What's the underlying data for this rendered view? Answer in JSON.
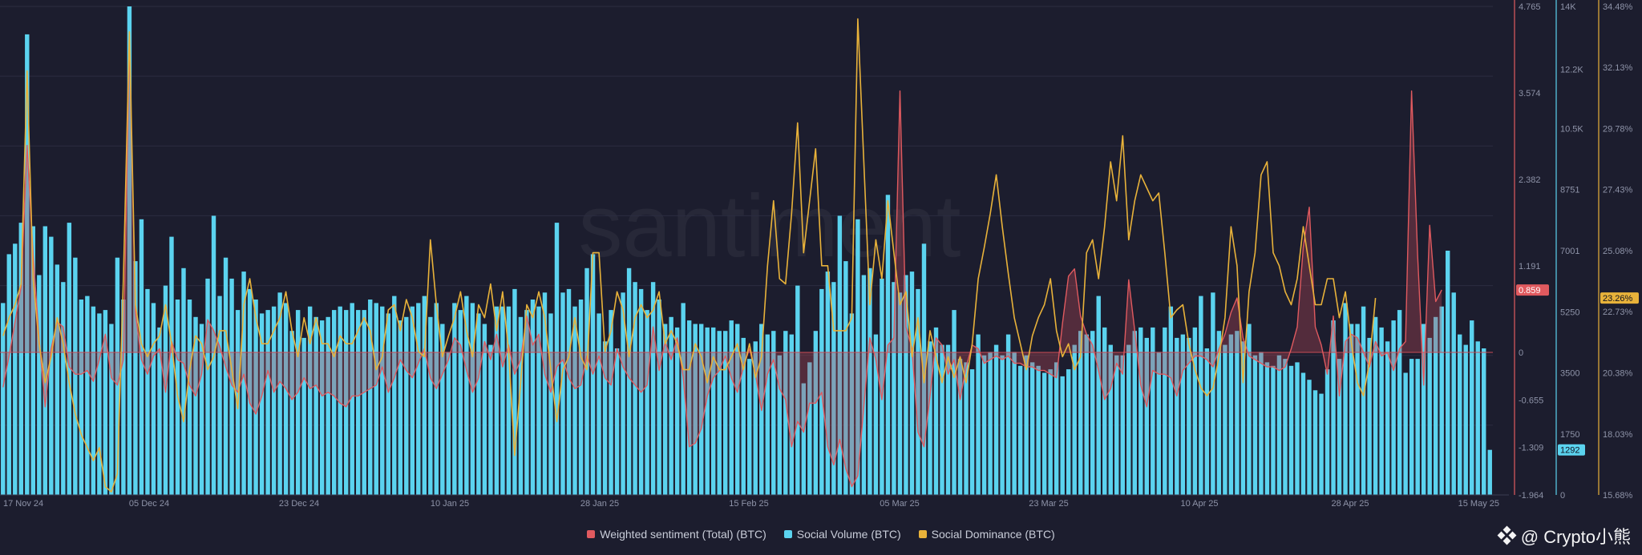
{
  "chart_data": {
    "type": "line",
    "watermark_text": "santiment",
    "x_ticks": [
      "17 Nov 24",
      "05 Dec 24",
      "23 Dec 24",
      "10 Jan 25",
      "28 Jan 25",
      "15 Feb 25",
      "05 Mar 25",
      "23 Mar 25",
      "10 Apr 25",
      "28 Apr 25",
      "15 May 25"
    ],
    "axes": {
      "sentiment": {
        "ticks": [
          "4.765",
          "3.574",
          "2.382",
          "1.191",
          "0",
          "-0.655",
          "-1.309",
          "-1.964"
        ],
        "range": [
          -1.964,
          4.765
        ],
        "color": "#e05a5f",
        "current_label": "0.859"
      },
      "volume": {
        "ticks": [
          "14K",
          "12.2K",
          "10.5K",
          "8751",
          "7001",
          "5250",
          "3500",
          "1750",
          "0"
        ],
        "range": [
          0,
          14000
        ],
        "color": "#5bd3ef",
        "current_label": "1292"
      },
      "dominance": {
        "ticks": [
          "34.48%",
          "32.13%",
          "29.78%",
          "27.43%",
          "25.08%",
          "22.73%",
          "20.38%",
          "18.03%",
          "15.68%"
        ],
        "range": [
          15.68,
          34.48
        ],
        "color": "#e8b23a",
        "current_label": "23.26%"
      }
    },
    "series": [
      {
        "name": "Weighted sentiment (Total) (BTC)",
        "color": "#e05a5f",
        "axis": "sentiment",
        "values": [
          -0.48,
          -0.05,
          0.42,
          0.9,
          2.85,
          1.35,
          0.18,
          -0.75,
          0.05,
          0.42,
          0.35,
          -0.2,
          -0.3,
          -0.3,
          -0.25,
          -0.4,
          -0.1,
          0.25,
          -0.35,
          -0.45,
          -0.1,
          4.3,
          0.55,
          -0.1,
          -0.3,
          -0.05,
          0.05,
          -0.55,
          0.15,
          -0.1,
          -0.15,
          -0.45,
          -0.6,
          -0.3,
          0.45,
          0.3,
          0.08,
          -0.2,
          -0.45,
          -0.55,
          -0.3,
          -0.7,
          -0.85,
          -0.6,
          -0.25,
          -0.55,
          -0.4,
          -0.5,
          -0.65,
          -0.55,
          -0.35,
          -0.5,
          -0.45,
          -0.6,
          -0.55,
          -0.6,
          -0.7,
          -0.75,
          -0.6,
          -0.6,
          -0.55,
          -0.5,
          -0.45,
          -0.2,
          -0.55,
          -0.35,
          -0.1,
          -0.25,
          -0.35,
          -0.15,
          0.05,
          -0.35,
          -0.5,
          -0.3,
          -0.1,
          0.2,
          0.1,
          -0.25,
          -0.55,
          -0.35,
          0.15,
          -0.1,
          0.25,
          -0.2,
          0.1,
          -0.3,
          -0.1,
          0.5,
          0.1,
          0.25,
          -0.3,
          -0.55,
          -0.2,
          -0.1,
          -0.35,
          -0.5,
          -0.45,
          -0.05,
          -0.3,
          -0.05,
          -0.35,
          -0.45,
          0.05,
          -0.2,
          -0.35,
          -0.45,
          -0.55,
          -0.45,
          0.35,
          -0.25,
          0.15,
          -0.1,
          0.2,
          -0.35,
          -1.3,
          -1.25,
          -1.05,
          -0.6,
          -0.35,
          -0.25,
          -0.05,
          -0.35,
          -0.55,
          -0.2,
          0.05,
          -0.3,
          -0.8,
          -0.3,
          -0.1,
          -0.5,
          -0.65,
          -1.3,
          -0.95,
          -1.1,
          -0.7,
          -0.7,
          -0.55,
          -1.3,
          -1.55,
          -1.2,
          -1.6,
          -1.85,
          -1.7,
          -0.75,
          0.2,
          -0.1,
          -0.65,
          0.1,
          0.2,
          3.6,
          0.35,
          0.05,
          -1.1,
          -1.3,
          -0.6,
          0.2,
          0.1,
          -0.3,
          -0.1,
          -0.65,
          -0.2,
          0.1,
          0.05,
          -0.15,
          -0.1,
          -0.05,
          -0.1,
          -0.05,
          -0.15,
          -0.15,
          -0.2,
          -0.2,
          -0.25,
          -0.25,
          -0.3,
          -0.35,
          0.4,
          1.05,
          1.15,
          0.5,
          0.25,
          0.1,
          -0.25,
          -0.65,
          -0.5,
          -0.15,
          -0.3,
          1.0,
          0.3,
          -0.45,
          -0.75,
          -0.25,
          -0.3,
          -0.3,
          -0.35,
          -0.6,
          -0.25,
          -0.15,
          -0.05,
          -0.05,
          -0.1,
          -0.2,
          0.05,
          0.25,
          0.55,
          0.75,
          0.2,
          -0.05,
          -0.1,
          -0.15,
          -0.2,
          -0.2,
          -0.25,
          -0.2,
          0.05,
          0.35,
          1.45,
          2.0,
          0.35,
          0.1,
          -0.3,
          0.5,
          -0.6,
          0.15,
          0.25,
          0.2,
          0.0,
          -0.2,
          0.15,
          -0.05,
          0.0,
          -0.25,
          0.05,
          0.15,
          3.6,
          1.35,
          -0.45,
          1.75,
          0.7,
          0.86
        ]
      },
      {
        "name": "Social Volume (BTC)",
        "color": "#5bd3ef",
        "axis": "volume",
        "values": [
          5500,
          6900,
          7200,
          7800,
          13200,
          7700,
          6300,
          7700,
          7400,
          6600,
          6100,
          7800,
          6800,
          5600,
          5700,
          5400,
          5200,
          5300,
          4900,
          6800,
          5600,
          14000,
          6700,
          7900,
          5900,
          5500,
          4800,
          6000,
          7400,
          5600,
          6500,
          5600,
          5100,
          4900,
          6200,
          8000,
          5700,
          6800,
          6200,
          5300,
          6400,
          5900,
          5600,
          5200,
          5300,
          5400,
          5800,
          5500,
          4700,
          5300,
          4500,
          5400,
          5100,
          5000,
          5100,
          5300,
          5400,
          5300,
          5500,
          5300,
          5300,
          5600,
          5500,
          5400,
          5200,
          5700,
          5000,
          5100,
          5400,
          5500,
          5700,
          5100,
          5500,
          4900,
          4100,
          5500,
          5300,
          5700,
          5500,
          5200,
          4900,
          4300,
          5400,
          5400,
          5400,
          5900,
          5100,
          5300,
          5600,
          5400,
          5800,
          5200,
          7800,
          5800,
          5900,
          5400,
          5600,
          6500,
          6900,
          5200,
          4400,
          5300,
          4200,
          5800,
          6500,
          6100,
          5900,
          5300,
          6100,
          5600,
          4900,
          5100,
          4800,
          5500,
          5000,
          4900,
          4900,
          4800,
          4800,
          4700,
          4700,
          5000,
          4900,
          4500,
          3900,
          4400,
          4900,
          4600,
          4700,
          4000,
          4700,
          4600,
          6000,
          3200,
          3800,
          4700,
          5900,
          6400,
          6100,
          8000,
          6700,
          5200,
          7900,
          6300,
          6500,
          4600,
          6200,
          8600,
          6100,
          5800,
          6300,
          6400,
          5900,
          7200,
          4400,
          4800,
          4300,
          4300,
          5300,
          3900,
          3800,
          3600,
          4600,
          4000,
          4100,
          4300,
          4000,
          4600,
          4100,
          3700,
          4000,
          3800,
          3700,
          3500,
          3600,
          3800,
          3400,
          3600,
          4300,
          4700,
          4600,
          4700,
          5700,
          4800,
          4300,
          4000,
          4000,
          4300,
          4700,
          4800,
          4500,
          4800,
          4100,
          4800,
          5400,
          4500,
          4600,
          4500,
          4800,
          5700,
          4200,
          5800,
          4700,
          4300,
          4600,
          4700,
          4400,
          4900,
          4000,
          4100,
          3800,
          3700,
          4000,
          3900,
          3700,
          3800,
          3500,
          3300,
          3000,
          2900,
          3600,
          5000,
          3900,
          5500,
          4900,
          4900,
          5400,
          4500,
          5100,
          4800,
          4400,
          5000,
          5300,
          3500,
          3900,
          3900,
          4900,
          4500,
          5100,
          5400,
          7000,
          5800,
          4600,
          4300,
          5000,
          4400,
          4200,
          1292
        ]
      },
      {
        "name": "Social Dominance (BTC)",
        "color": "#e8b23a",
        "axis": "dominance",
        "values": [
          21.8,
          22.5,
          23.0,
          23.8,
          32.0,
          24.0,
          21.5,
          20.0,
          21.0,
          22.5,
          21.5,
          20.0,
          18.8,
          18.0,
          17.5,
          17.0,
          17.5,
          16.0,
          15.8,
          16.5,
          24.0,
          33.5,
          23.0,
          21.5,
          21.0,
          21.5,
          21.8,
          23.0,
          21.5,
          19.5,
          18.5,
          20.5,
          21.8,
          21.5,
          20.5,
          21.0,
          22.0,
          22.0,
          20.5,
          19.0,
          23.0,
          24.0,
          22.5,
          21.5,
          21.5,
          22.0,
          22.5,
          23.5,
          22.0,
          21.0,
          22.5,
          21.5,
          22.5,
          21.5,
          21.5,
          21.0,
          21.8,
          21.5,
          21.5,
          22.0,
          22.5,
          22.0,
          20.5,
          21.0,
          22.8,
          23.0,
          22.0,
          23.2,
          22.5,
          21.2,
          21.0,
          25.5,
          23.0,
          21.0,
          21.8,
          22.5,
          23.5,
          22.0,
          21.0,
          23.0,
          22.5,
          23.8,
          22.0,
          23.5,
          21.2,
          17.2,
          20.0,
          23.0,
          22.5,
          23.5,
          22.5,
          20.5,
          18.5,
          20.5,
          21.0,
          22.5,
          21.0,
          20.5,
          25.0,
          25.0,
          21.2,
          22.0,
          23.5,
          22.8,
          21.0,
          22.5,
          23.0,
          22.5,
          22.8,
          23.5,
          21.5,
          22.0,
          21.5,
          20.5,
          20.5,
          21.5,
          21.0,
          20.0,
          21.0,
          20.5,
          20.5,
          21.0,
          21.5,
          20.5,
          21.5,
          20.2,
          21.0,
          24.5,
          27.0,
          24.0,
          23.8,
          26.5,
          30.0,
          25.0,
          27.0,
          29.0,
          24.5,
          24.5,
          22.0,
          22.0,
          22.0,
          22.5,
          34.0,
          28.5,
          23.0,
          25.5,
          24.0,
          27.0,
          25.0,
          23.0,
          23.5,
          21.0,
          22.5,
          20.0,
          22.0,
          21.0,
          20.0,
          21.0,
          20.2,
          21.0,
          20.0,
          21.5,
          24.0,
          25.2,
          26.5,
          28.0,
          26.0,
          24.2,
          22.5,
          21.5,
          20.5,
          21.8,
          22.5,
          23.0,
          24.0,
          22.0,
          21.0,
          21.5,
          20.5,
          21.0,
          25.0,
          25.5,
          24.0,
          26.0,
          28.5,
          27.0,
          29.5,
          25.5,
          27.0,
          28.0,
          27.5,
          27.0,
          27.3,
          25.0,
          22.5,
          22.8,
          23.0,
          21.5,
          20.5,
          19.8,
          19.5,
          19.8,
          21.0,
          22.5,
          26.0,
          24.5,
          20.0,
          23.5,
          25.0,
          28.0,
          28.5,
          25.0,
          24.5,
          23.5,
          23.0,
          24.0,
          26.0,
          24.5,
          23.0,
          23.0,
          24.0,
          24.0,
          22.5,
          23.5,
          21.5,
          20.0,
          19.5,
          20.8,
          23.26
        ]
      }
    ]
  },
  "legend": [
    {
      "label": "Weighted sentiment (Total) (BTC)",
      "color": "#e05a5f"
    },
    {
      "label": "Social Volume (BTC)",
      "color": "#5bd3ef"
    },
    {
      "label": "Social Dominance (BTC)",
      "color": "#e8b23a"
    }
  ],
  "watermark_credit": "@ Crypto小熊",
  "colors": {
    "background": "#1c1d2e",
    "grid": "#2b2d40",
    "zero_line": "#c84b55"
  }
}
